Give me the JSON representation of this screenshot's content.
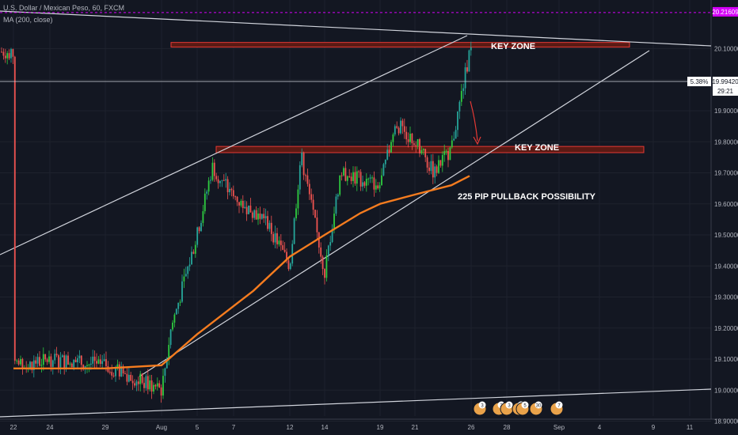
{
  "header": {
    "symbol_line": "U.S. Dollar / Mexican Peso, 60, FXCM",
    "indicator_line": "MA (200, close)"
  },
  "chart_data": {
    "type": "line",
    "title": "U.S. Dollar / Mexican Peso, 60, FXCM",
    "x_ticks": [
      "22",
      "24",
      "29",
      "Aug",
      "5",
      "7",
      "12",
      "14",
      "19",
      "21",
      "26",
      "28",
      "Sep",
      "4",
      "9",
      "11"
    ],
    "y_ticks": [
      "20.10000",
      "20.00000",
      "19.90000",
      "19.80000",
      "19.70000",
      "19.60000",
      "19.50000",
      "19.40000",
      "19.30000",
      "19.20000",
      "19.10000",
      "19.00000",
      "18.90000"
    ],
    "ylim": [
      18.88,
      20.23
    ],
    "price_series": {
      "x": [
        "Jul 22",
        "Jul 24",
        "Jul 29",
        "Aug 1",
        "Aug 2",
        "Aug 5",
        "Aug 6",
        "Aug 7",
        "Aug 9",
        "Aug 12",
        "Aug 13",
        "Aug 14",
        "Aug 15",
        "Aug 19",
        "Aug 20",
        "Aug 21",
        "Aug 22",
        "Aug 23",
        "Aug 26"
      ],
      "values": [
        19.07,
        19.1,
        19.08,
        19.0,
        19.2,
        19.5,
        19.72,
        19.62,
        19.55,
        19.4,
        19.76,
        19.38,
        19.7,
        19.66,
        19.86,
        19.8,
        19.7,
        19.78,
        20.09
      ]
    },
    "moving_average": {
      "name": "MA (200, close)",
      "x": [
        "Jul 22",
        "Jul 29",
        "Aug 1",
        "Aug 5",
        "Aug 8",
        "Aug 12",
        "Aug 14",
        "Aug 16",
        "Aug 19",
        "Aug 21",
        "Aug 23",
        "Aug 26"
      ],
      "values": [
        19.07,
        19.07,
        19.08,
        19.18,
        19.32,
        19.43,
        19.5,
        19.57,
        19.6,
        19.63,
        19.66,
        19.69
      ],
      "color": "#f57c1f"
    },
    "price_axis_tags": [
      {
        "text": "20.21609",
        "color": "#d500f9"
      },
      {
        "text": "19.99420",
        "color": "#ffffff"
      },
      {
        "text": "5.38%",
        "color": "#ffffff"
      },
      {
        "text": "29:21",
        "color": "#ffffff"
      }
    ],
    "annotations": [
      {
        "text": "KEY ZONE",
        "kind": "resistance zone",
        "price_range": [
          20.105,
          20.12
        ]
      },
      {
        "text": "KEY ZONE",
        "kind": "support zone",
        "price_range": [
          19.765,
          19.785
        ]
      },
      {
        "text": "225 PIP PULLBACK POSSIBILITY",
        "kind": "label"
      }
    ],
    "event_badges": [
      "3",
      "2",
      "3",
      "5",
      "5",
      "30",
      "7"
    ],
    "colors": {
      "up": "#26a69a",
      "green_up": "#2ecc40",
      "down": "#ef5350",
      "ma": "#f57c1f",
      "zone_fill": "#5a1a14",
      "zone_border": "#e53935",
      "trendline": "#d1d4dc",
      "arrow": "#e53935"
    }
  }
}
